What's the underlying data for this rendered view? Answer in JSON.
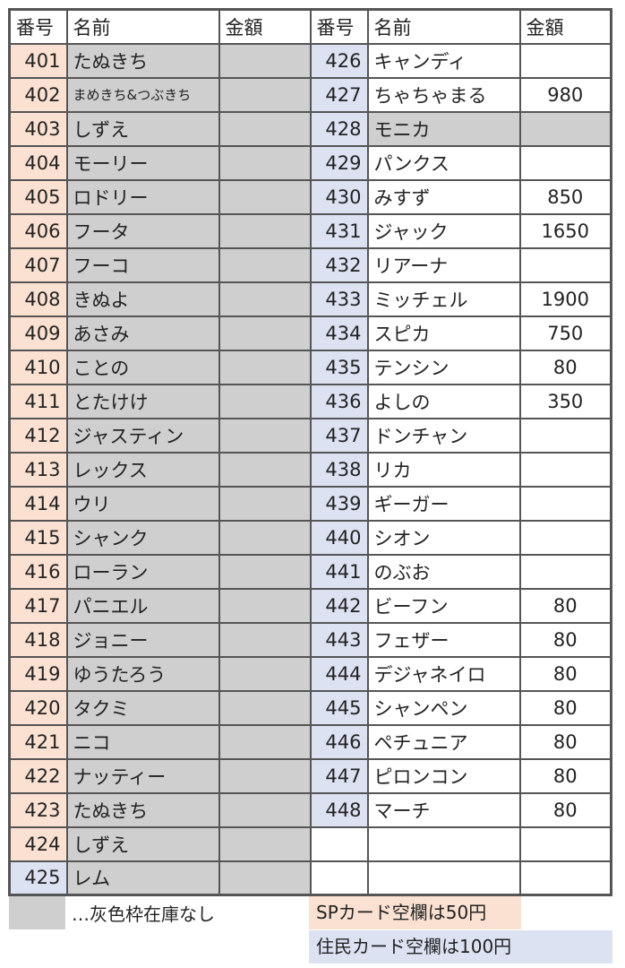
{
  "colors": {
    "sp_card": "#fbe1d2",
    "resident_card": "#dce2f2",
    "out_of_stock": "#cfcfcf"
  },
  "headers": {
    "number": "番号",
    "name": "名前",
    "amount": "金額"
  },
  "left": [
    {
      "no": "401",
      "name": "たぬきち",
      "amount": "",
      "card": "sp",
      "gray": true
    },
    {
      "no": "402",
      "name": "まめきち&つぶきち",
      "amount": "",
      "card": "sp",
      "gray": true,
      "small": true
    },
    {
      "no": "403",
      "name": "しずえ",
      "amount": "",
      "card": "sp",
      "gray": true
    },
    {
      "no": "404",
      "name": "モーリー",
      "amount": "",
      "card": "sp",
      "gray": true
    },
    {
      "no": "405",
      "name": "ロドリー",
      "amount": "",
      "card": "sp",
      "gray": true
    },
    {
      "no": "406",
      "name": "フータ",
      "amount": "",
      "card": "sp",
      "gray": true
    },
    {
      "no": "407",
      "name": "フーコ",
      "amount": "",
      "card": "sp",
      "gray": true
    },
    {
      "no": "408",
      "name": "きぬよ",
      "amount": "",
      "card": "sp",
      "gray": true
    },
    {
      "no": "409",
      "name": "あさみ",
      "amount": "",
      "card": "sp",
      "gray": true
    },
    {
      "no": "410",
      "name": "ことの",
      "amount": "",
      "card": "sp",
      "gray": true
    },
    {
      "no": "411",
      "name": "とたけけ",
      "amount": "",
      "card": "sp",
      "gray": true
    },
    {
      "no": "412",
      "name": "ジャスティン",
      "amount": "",
      "card": "sp",
      "gray": true
    },
    {
      "no": "413",
      "name": "レックス",
      "amount": "",
      "card": "sp",
      "gray": true
    },
    {
      "no": "414",
      "name": "ウリ",
      "amount": "",
      "card": "sp",
      "gray": true
    },
    {
      "no": "415",
      "name": "シャンク",
      "amount": "",
      "card": "sp",
      "gray": true
    },
    {
      "no": "416",
      "name": "ローラン",
      "amount": "",
      "card": "sp",
      "gray": true
    },
    {
      "no": "417",
      "name": "パニエル",
      "amount": "",
      "card": "sp",
      "gray": true
    },
    {
      "no": "418",
      "name": "ジョニー",
      "amount": "",
      "card": "sp",
      "gray": true
    },
    {
      "no": "419",
      "name": "ゆうたろう",
      "amount": "",
      "card": "sp",
      "gray": true
    },
    {
      "no": "420",
      "name": "タクミ",
      "amount": "",
      "card": "sp",
      "gray": true
    },
    {
      "no": "421",
      "name": "ニコ",
      "amount": "",
      "card": "sp",
      "gray": true
    },
    {
      "no": "422",
      "name": "ナッティー",
      "amount": "",
      "card": "sp",
      "gray": true
    },
    {
      "no": "423",
      "name": "たぬきち",
      "amount": "",
      "card": "sp",
      "gray": true
    },
    {
      "no": "424",
      "name": "しずえ",
      "amount": "",
      "card": "sp",
      "gray": true
    },
    {
      "no": "425",
      "name": "レム",
      "amount": "",
      "card": "resident",
      "gray": true
    }
  ],
  "right": [
    {
      "no": "426",
      "name": "キャンディ",
      "amount": "",
      "card": "resident",
      "gray": false
    },
    {
      "no": "427",
      "name": "ちゃちゃまる",
      "amount": "980",
      "card": "resident",
      "gray": false
    },
    {
      "no": "428",
      "name": "モニカ",
      "amount": "",
      "card": "resident",
      "gray": true
    },
    {
      "no": "429",
      "name": "パンクス",
      "amount": "",
      "card": "resident",
      "gray": false
    },
    {
      "no": "430",
      "name": "みすず",
      "amount": "850",
      "card": "resident",
      "gray": false
    },
    {
      "no": "431",
      "name": "ジャック",
      "amount": "1650",
      "card": "resident",
      "gray": false
    },
    {
      "no": "432",
      "name": "リアーナ",
      "amount": "",
      "card": "resident",
      "gray": false
    },
    {
      "no": "433",
      "name": "ミッチェル",
      "amount": "1900",
      "card": "resident",
      "gray": false
    },
    {
      "no": "434",
      "name": "スピカ",
      "amount": "750",
      "card": "resident",
      "gray": false
    },
    {
      "no": "435",
      "name": "テンシン",
      "amount": "80",
      "card": "resident",
      "gray": false
    },
    {
      "no": "436",
      "name": "よしの",
      "amount": "350",
      "card": "resident",
      "gray": false
    },
    {
      "no": "437",
      "name": "ドンチャン",
      "amount": "",
      "card": "resident",
      "gray": false
    },
    {
      "no": "438",
      "name": "リカ",
      "amount": "",
      "card": "resident",
      "gray": false
    },
    {
      "no": "439",
      "name": "ギーガー",
      "amount": "",
      "card": "resident",
      "gray": false
    },
    {
      "no": "440",
      "name": "シオン",
      "amount": "",
      "card": "resident",
      "gray": false
    },
    {
      "no": "441",
      "name": "のぶお",
      "amount": "",
      "card": "resident",
      "gray": false
    },
    {
      "no": "442",
      "name": "ビーフン",
      "amount": "80",
      "card": "resident",
      "gray": false
    },
    {
      "no": "443",
      "name": "フェザー",
      "amount": "80",
      "card": "resident",
      "gray": false
    },
    {
      "no": "444",
      "name": "デジャネイロ",
      "amount": "80",
      "card": "resident",
      "gray": false
    },
    {
      "no": "445",
      "name": "シャンペン",
      "amount": "80",
      "card": "resident",
      "gray": false
    },
    {
      "no": "446",
      "name": "ペチュニア",
      "amount": "80",
      "card": "resident",
      "gray": false
    },
    {
      "no": "447",
      "name": "ピロンコン",
      "amount": "80",
      "card": "resident",
      "gray": false
    },
    {
      "no": "448",
      "name": "マーチ",
      "amount": "80",
      "card": "resident",
      "gray": false
    },
    {
      "no": "",
      "name": "",
      "amount": "",
      "card": "",
      "gray": false
    },
    {
      "no": "",
      "name": "",
      "amount": "",
      "card": "",
      "gray": false
    }
  ],
  "legend": {
    "gray_note": "…灰色枠在庫なし",
    "sp_note": "SPカード空欄は50円",
    "resident_note": "住民カード空欄は100円"
  }
}
